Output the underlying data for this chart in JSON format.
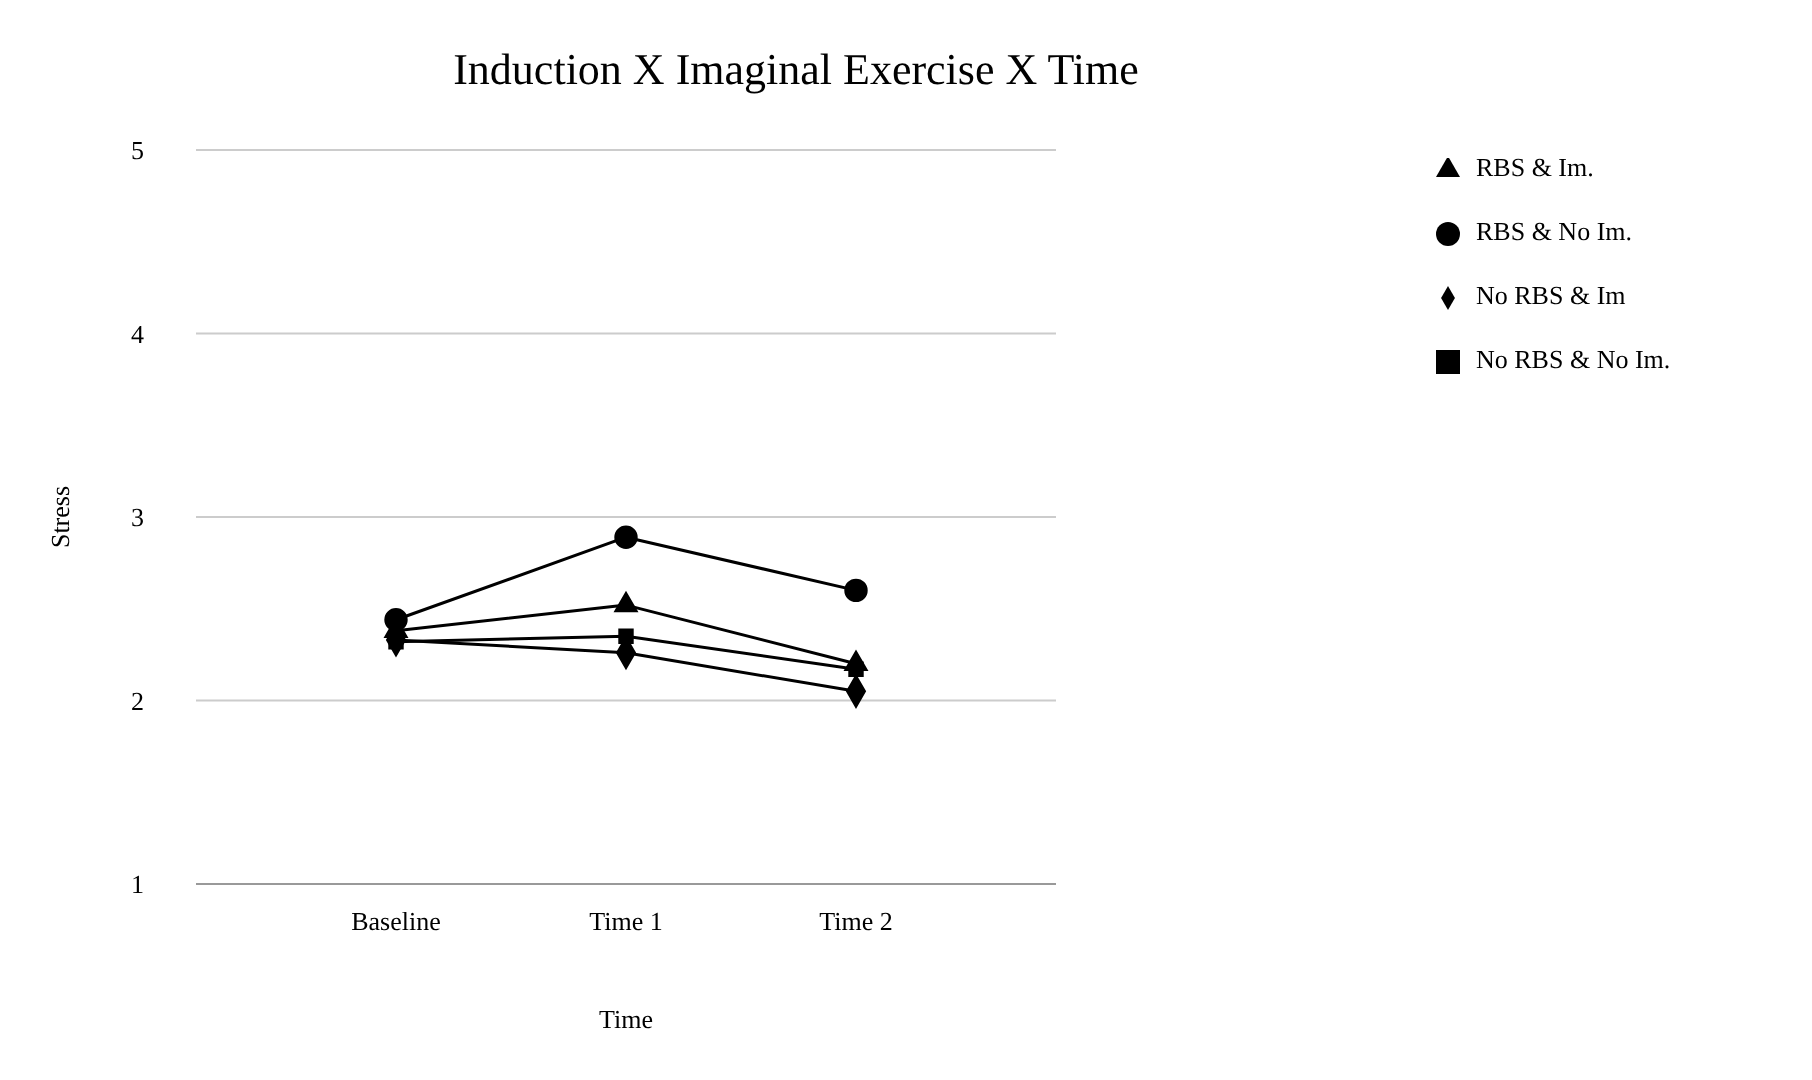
{
  "chart_data": {
    "type": "line",
    "title": "Induction X Imaginal Exercise X Time",
    "xlabel": "Time",
    "ylabel": "Stress",
    "categories": [
      "Baseline",
      "Time 1",
      "Time 2"
    ],
    "ylim": [
      1,
      5
    ],
    "yticks": [
      1,
      2,
      3,
      4,
      5
    ],
    "grid": "y",
    "legend": "top right",
    "series": [
      {
        "name": "RBS & Im.",
        "color": "#000000",
        "marker": "triangle",
        "values": [
          2.38,
          2.52,
          2.2
        ]
      },
      {
        "name": "RBS & No Im.",
        "color": "#000000",
        "marker": "circle",
        "values": [
          2.44,
          2.89,
          2.6
        ]
      },
      {
        "name": "No RBS & Im",
        "color": "#000000",
        "marker": "diamond",
        "values": [
          2.33,
          2.26,
          2.05
        ]
      },
      {
        "name": "No RBS & No Im.",
        "color": "#000000",
        "marker": "square",
        "values": [
          2.32,
          2.35,
          2.17
        ]
      }
    ]
  }
}
